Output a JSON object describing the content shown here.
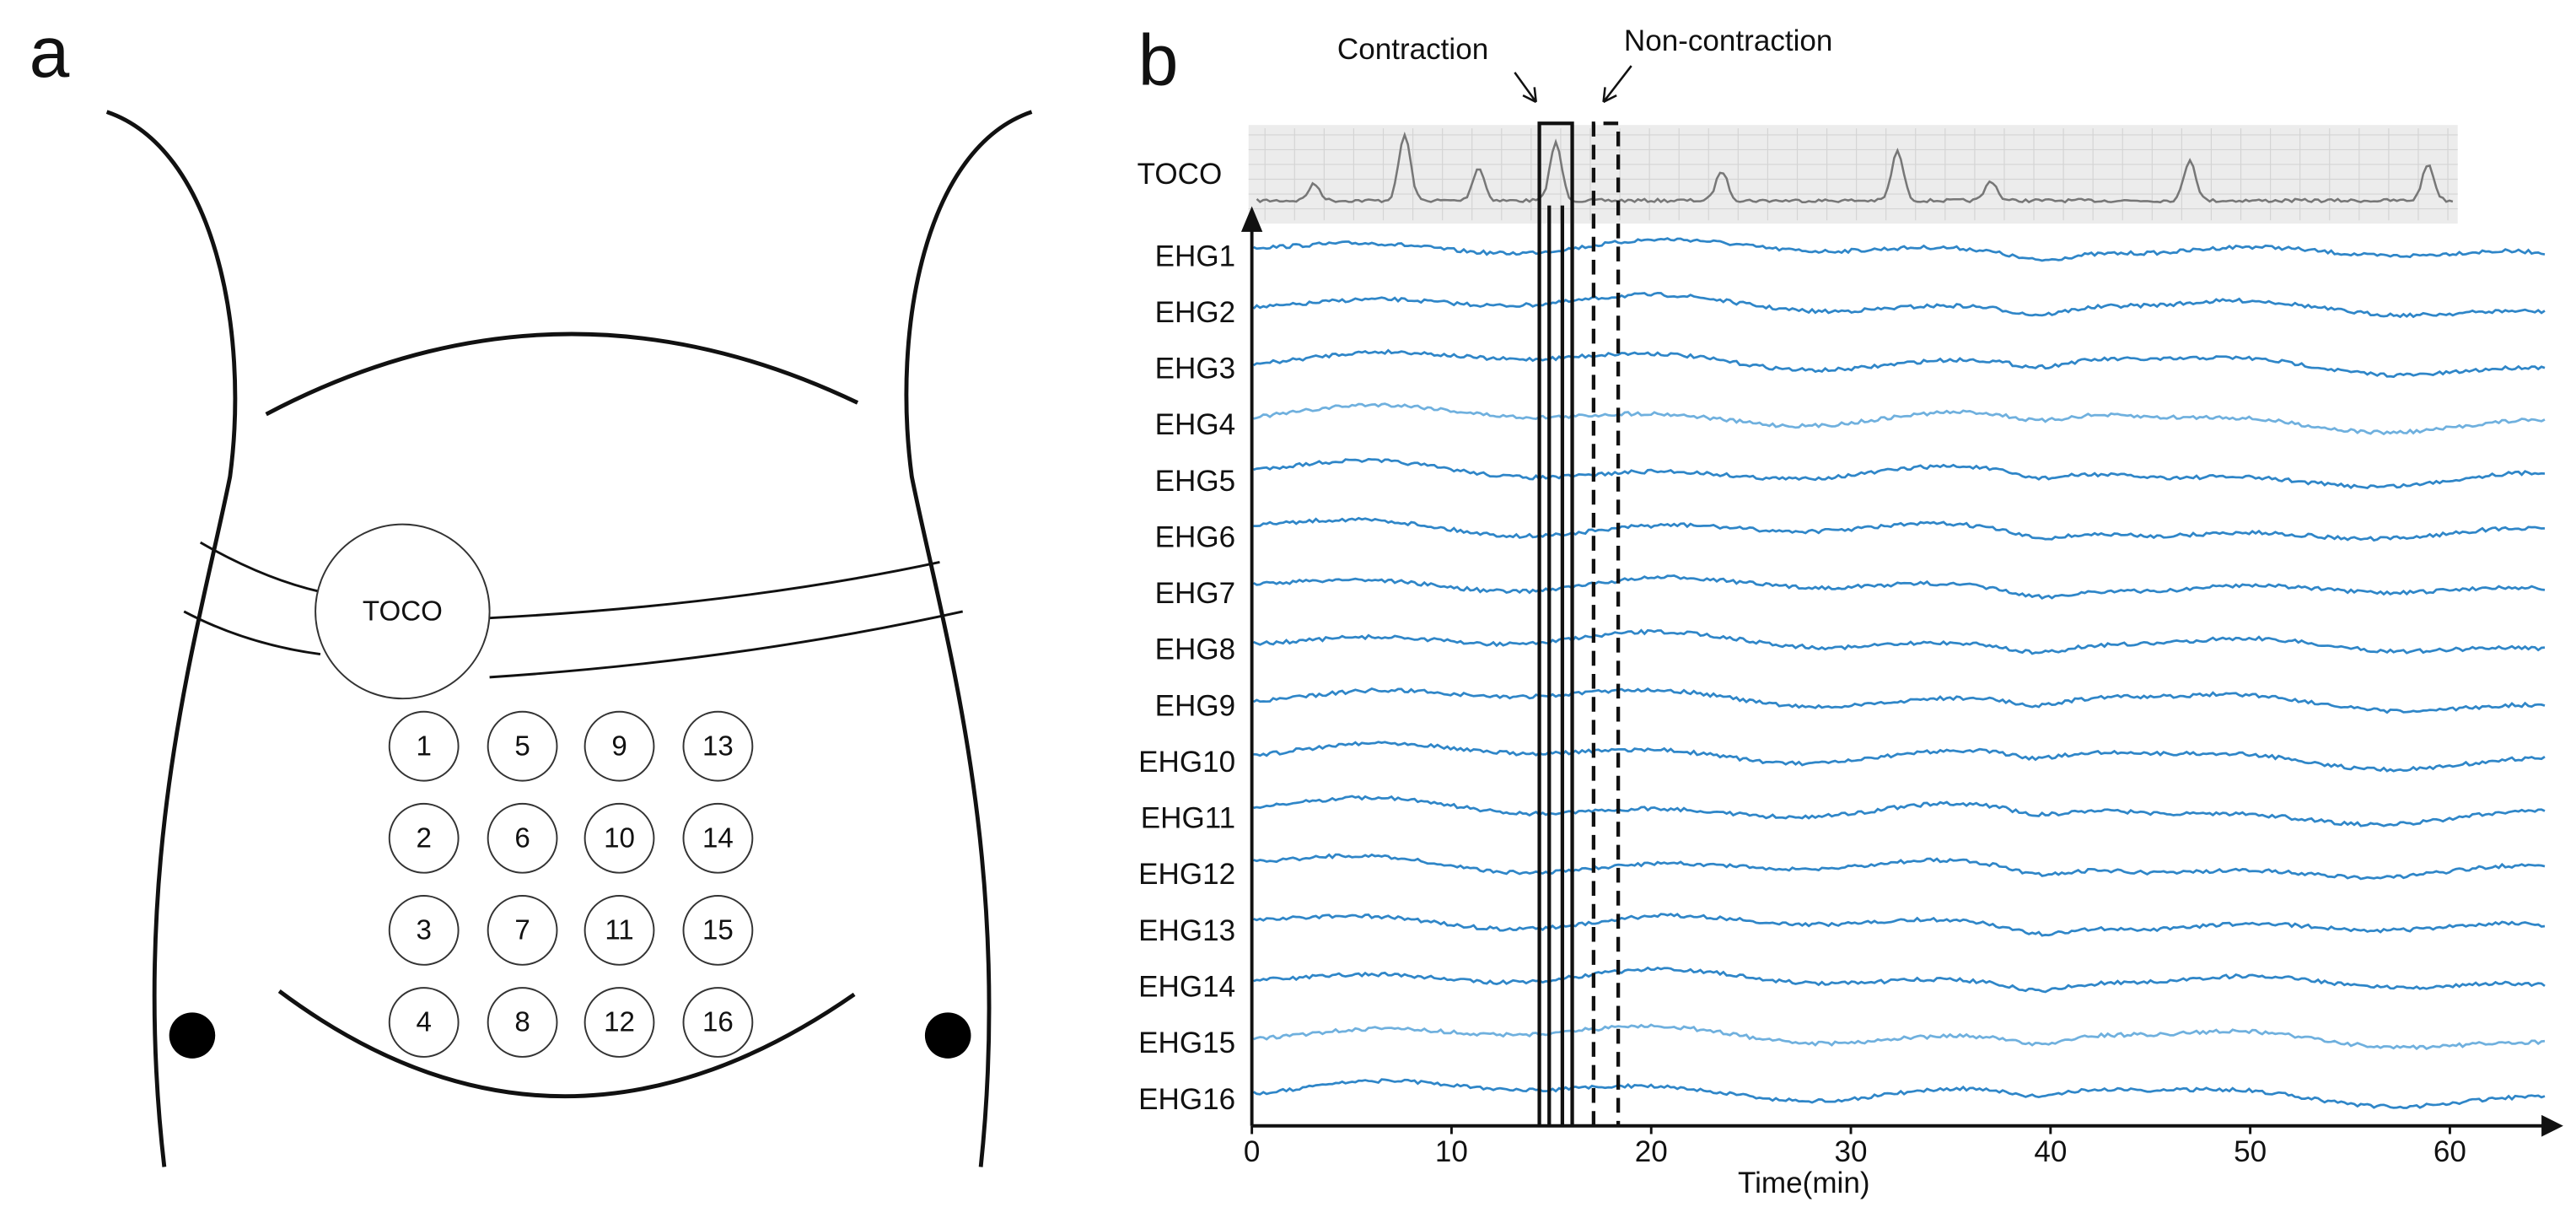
{
  "panel_a": {
    "label": "a",
    "toco": "TOCO",
    "electrodes": [
      1,
      2,
      3,
      4,
      5,
      6,
      7,
      8,
      9,
      10,
      11,
      12,
      13,
      14,
      15,
      16
    ]
  },
  "panel_b": {
    "label": "b",
    "contraction": "Contraction",
    "non_contraction": "Non-contraction",
    "toco_label": "TOCO",
    "channels": [
      "EHG1",
      "EHG2",
      "EHG3",
      "EHG4",
      "EHG5",
      "EHG6",
      "EHG7",
      "EHG8",
      "EHG9",
      "EHG10",
      "EHG11",
      "EHG12",
      "EHG13",
      "EHG14",
      "EHG15",
      "EHG16"
    ],
    "x_axis": {
      "label": "Time(min)",
      "xlim": [
        0,
        65
      ],
      "xticks": [
        0,
        10,
        20,
        30,
        40,
        50,
        60
      ]
    }
  }
}
